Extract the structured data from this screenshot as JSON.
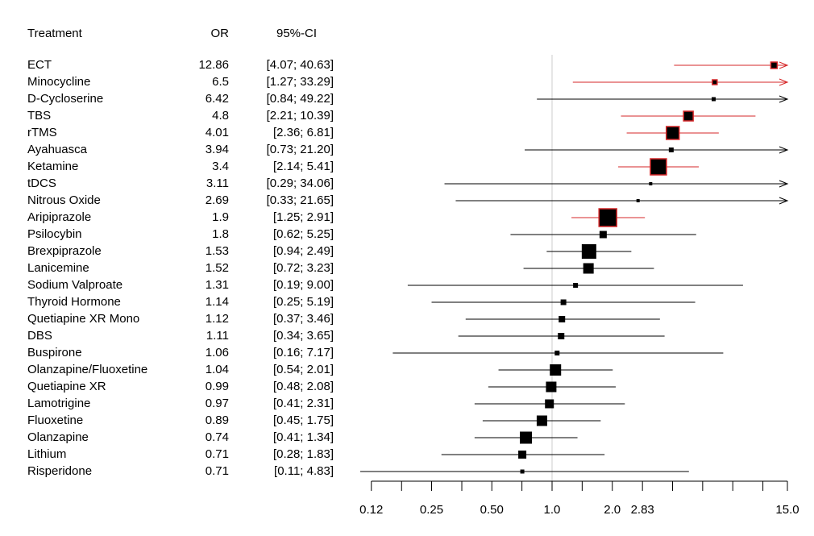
{
  "chart_data": {
    "type": "forest",
    "headers": [
      "Treatment",
      "OR",
      "95%-CI"
    ],
    "categories": [
      "ECT",
      "Minocycline",
      "D-Cycloserine",
      "TBS",
      "rTMS",
      "Ayahuasca",
      "Ketamine",
      "tDCS",
      "Nitrous Oxide",
      "Aripiprazole",
      "Psilocybin",
      "Brexpiprazole",
      "Lanicemine",
      "Sodium Valproate",
      "Thyroid Hormone",
      "Quetiapine XR Mono",
      "DBS",
      "Buspirone",
      "Olanzapine/Fluoxetine",
      "Quetiapine XR",
      "Lamotrigine",
      "Fluoxetine",
      "Olanzapine",
      "Lithium",
      "Risperidone"
    ],
    "values": [
      12.86,
      6.5,
      6.42,
      4.8,
      4.01,
      3.94,
      3.4,
      3.11,
      2.69,
      1.9,
      1.8,
      1.53,
      1.52,
      1.31,
      1.14,
      1.12,
      1.11,
      1.06,
      1.04,
      0.99,
      0.97,
      0.89,
      0.74,
      0.71,
      0.71
    ],
    "ci_lower": [
      4.07,
      1.27,
      0.84,
      2.21,
      2.36,
      0.73,
      2.14,
      0.29,
      0.33,
      1.25,
      0.62,
      0.94,
      0.72,
      0.19,
      0.25,
      0.37,
      0.34,
      0.16,
      0.54,
      0.48,
      0.41,
      0.45,
      0.41,
      0.28,
      0.11
    ],
    "ci_upper": [
      40.63,
      33.29,
      49.22,
      10.39,
      6.81,
      21.2,
      5.41,
      34.06,
      21.65,
      2.91,
      5.25,
      2.49,
      3.23,
      9.0,
      5.19,
      3.46,
      3.65,
      7.17,
      2.01,
      2.08,
      2.31,
      1.75,
      1.34,
      1.83,
      4.83
    ],
    "ci_labels": [
      "[4.07; 40.63]",
      "[1.27; 33.29]",
      "[0.84; 49.22]",
      "[2.21; 10.39]",
      "[2.36; 6.81]",
      "[0.73; 21.20]",
      "[2.14; 5.41]",
      "[0.29; 34.06]",
      "[0.33; 21.65]",
      "[1.25; 2.91]",
      "[0.62; 5.25]",
      "[0.94; 2.49]",
      "[0.72; 3.23]",
      "[0.19; 9.00]",
      "[0.25; 5.19]",
      "[0.37; 3.46]",
      "[0.34; 3.65]",
      "[0.16; 7.17]",
      "[0.54; 2.01]",
      "[0.48; 2.08]",
      "[0.41; 2.31]",
      "[0.45; 1.75]",
      "[0.41; 1.34]",
      "[0.28; 1.83]",
      "[0.11; 4.83]"
    ],
    "weights": [
      8,
      6,
      5,
      12,
      16,
      6,
      20,
      4,
      4,
      22,
      9,
      18,
      13,
      6,
      7,
      8,
      8,
      6,
      14,
      13,
      11,
      13,
      15,
      10,
      5
    ],
    "colors": [
      "#d62728",
      "#d62728",
      "#000000",
      "#d62728",
      "#d62728",
      "#000000",
      "#d62728",
      "#000000",
      "#000000",
      "#d62728",
      "#000000",
      "#000000",
      "#000000",
      "#000000",
      "#000000",
      "#000000",
      "#000000",
      "#000000",
      "#000000",
      "#000000",
      "#000000",
      "#000000",
      "#000000",
      "#000000",
      "#000000"
    ],
    "log_x": true,
    "reference_line": 1,
    "xlim": [
      0.107,
      15
    ],
    "xticks": [
      {
        "value": 0.125,
        "label": "0.12"
      },
      0.25,
      {
        "value": 0.5,
        "label": "0.50"
      },
      {
        "value": 1,
        "label": "1.0"
      },
      {
        "value": 2,
        "label": "2.0"
      },
      2.83,
      {
        "value": 15,
        "label": "15.0"
      }
    ],
    "xminor_ticks": [
      0.177,
      0.354,
      0.707,
      1.414,
      4,
      5.657,
      8,
      11.314
    ]
  }
}
